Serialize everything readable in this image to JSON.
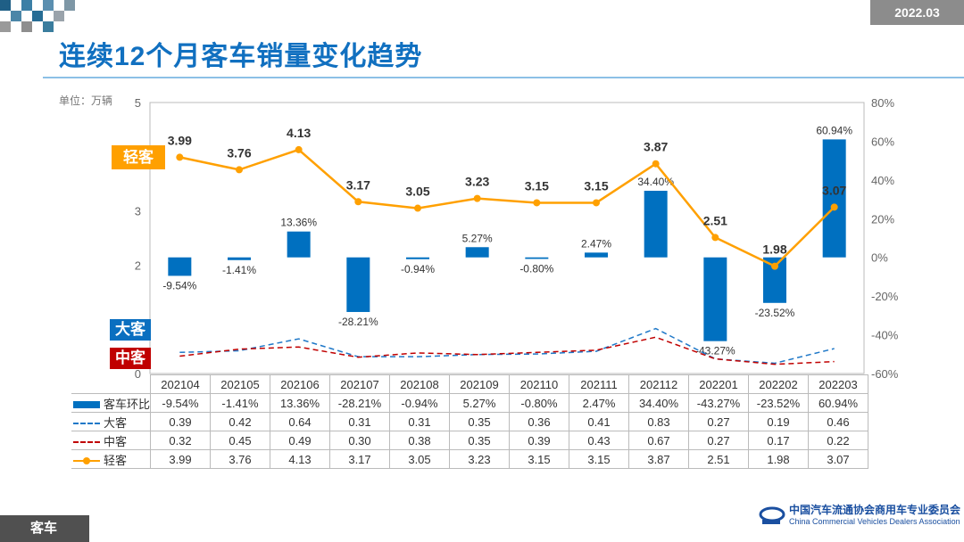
{
  "header": {
    "title": "连续12个月客车销量变化趋势",
    "date": "2022.03",
    "unit": "单位：万辆"
  },
  "footer": {
    "tab": "客车",
    "org_cn": "中国汽车流通协会商用车专业委员会",
    "org_en": "China Commercial Vehicles Dealers Association"
  },
  "tags": {
    "light": "轻客",
    "large": "大客",
    "medium": "中客"
  },
  "colors": {
    "bar": "#0070c0",
    "large": "#1f78c8",
    "medium": "#c00000",
    "light": "#ffa000"
  },
  "chart_data": {
    "type": "bar+line",
    "categories": [
      "202104",
      "202105",
      "202106",
      "202107",
      "202108",
      "202109",
      "202110",
      "202111",
      "202112",
      "202201",
      "202202",
      "202203"
    ],
    "left_axis": {
      "ylim": [
        0,
        5
      ],
      "ticks": [
        "0",
        "2",
        "3",
        "5"
      ]
    },
    "right_axis": {
      "ylim": [
        -60,
        80
      ],
      "ticks": [
        "80%",
        "60%",
        "40%",
        "20%",
        "0%",
        "-20%",
        "-40%",
        "-60%"
      ]
    },
    "series": [
      {
        "name": "客车环比",
        "type": "bar",
        "axis": "right",
        "values": [
          -9.54,
          -1.41,
          13.36,
          -28.21,
          -0.94,
          5.27,
          -0.8,
          2.47,
          34.4,
          -43.27,
          -23.52,
          60.94
        ],
        "labels": [
          "-9.54%",
          "-1.41%",
          "13.36%",
          "-28.21%",
          "-0.94%",
          "5.27%",
          "-0.80%",
          "2.47%",
          "34.40%",
          "-43.27%",
          "-23.52%",
          "60.94%"
        ]
      },
      {
        "name": "大客",
        "type": "line-dashed",
        "axis": "left",
        "values": [
          0.39,
          0.42,
          0.64,
          0.31,
          0.31,
          0.35,
          0.36,
          0.41,
          0.83,
          0.27,
          0.19,
          0.46
        ],
        "labels": [
          "0.39",
          "0.42",
          "0.64",
          "0.31",
          "0.31",
          "0.35",
          "0.36",
          "0.41",
          "0.83",
          "0.27",
          "0.19",
          "0.46"
        ]
      },
      {
        "name": "中客",
        "type": "line-dashed",
        "axis": "left",
        "values": [
          0.32,
          0.45,
          0.49,
          0.3,
          0.38,
          0.35,
          0.39,
          0.43,
          0.67,
          0.27,
          0.17,
          0.22
        ],
        "labels": [
          "0.32",
          "0.45",
          "0.49",
          "0.30",
          "0.38",
          "0.35",
          "0.39",
          "0.43",
          "0.67",
          "0.27",
          "0.17",
          "0.22"
        ]
      },
      {
        "name": "轻客",
        "type": "line-marker",
        "axis": "left",
        "values": [
          3.99,
          3.76,
          4.13,
          3.17,
          3.05,
          3.23,
          3.15,
          3.15,
          3.87,
          2.51,
          1.98,
          3.07
        ],
        "labels": [
          "3.99",
          "3.76",
          "4.13",
          "3.17",
          "3.05",
          "3.23",
          "3.15",
          "3.15",
          "3.87",
          "2.51",
          "1.98",
          "3.07"
        ]
      }
    ]
  }
}
